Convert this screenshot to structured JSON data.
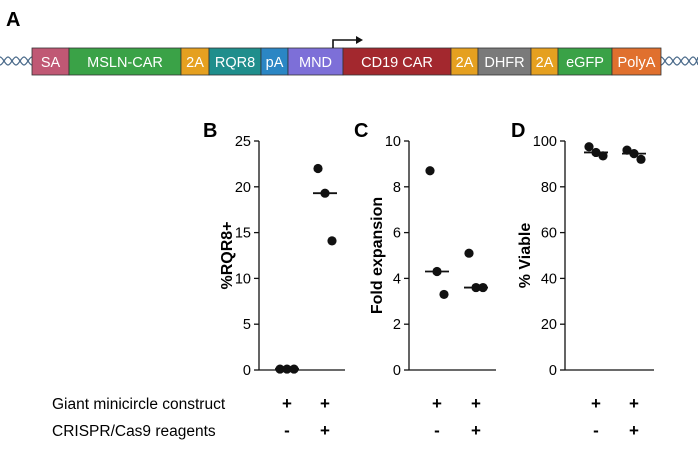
{
  "panel_a": {
    "label": "A",
    "segments": [
      {
        "text": "SA",
        "color": "#c05874"
      },
      {
        "text": "MSLN-CAR",
        "color": "#3aa247"
      },
      {
        "text": "2A",
        "color": "#e5a020"
      },
      {
        "text": "RQR8",
        "color": "#1f8e8c"
      },
      {
        "text": "pA",
        "color": "#2b86c4"
      },
      {
        "text": "MND",
        "color": "#7d6fd8"
      },
      {
        "text": "CD19 CAR",
        "color": "#a3282e"
      },
      {
        "text": "2A",
        "color": "#e5a020"
      },
      {
        "text": "DHFR",
        "color": "#7a7a7a"
      },
      {
        "text": "2A",
        "color": "#e5a020"
      },
      {
        "text": "eGFP",
        "color": "#3aa247"
      },
      {
        "text": "PolyA",
        "color": "#e0702e"
      }
    ]
  },
  "chart_data": [
    {
      "panel": "B",
      "type": "scatter",
      "ylabel": "%RQR8+",
      "ylim": [
        0,
        25
      ],
      "yticks": [
        "0",
        "5",
        "10",
        "15",
        "20",
        "25"
      ],
      "ytick_values": [
        0,
        5,
        10,
        15,
        20,
        25
      ],
      "groups": [
        {
          "name": "Giant minicircle only",
          "points": [
            0.1,
            0.1,
            0.1
          ],
          "median": 0.1
        },
        {
          "name": "Giant minicircle + CRISPR/Cas9",
          "points": [
            22,
            19.3,
            14.1
          ],
          "median": 19.3
        }
      ]
    },
    {
      "panel": "C",
      "type": "scatter",
      "ylabel": "Fold expansion",
      "ylim": [
        0,
        10
      ],
      "yticks": [
        "0",
        "2",
        "4",
        "6",
        "8",
        "10"
      ],
      "ytick_values": [
        0,
        2,
        4,
        6,
        8,
        10
      ],
      "groups": [
        {
          "name": "Giant minicircle only",
          "points": [
            8.7,
            4.3,
            3.3
          ],
          "median": 4.3
        },
        {
          "name": "Giant minicircle + CRISPR/Cas9",
          "points": [
            5.1,
            3.6,
            3.6
          ],
          "median": 3.6
        }
      ]
    },
    {
      "panel": "D",
      "type": "scatter",
      "ylabel": "% Viable",
      "ylim": [
        0,
        100
      ],
      "yticks": [
        "0",
        "20",
        "40",
        "60",
        "80",
        "100"
      ],
      "ytick_values": [
        0,
        20,
        40,
        60,
        80,
        100
      ],
      "groups": [
        {
          "name": "Giant minicircle only",
          "points": [
            97.5,
            95,
            93.5
          ],
          "median": 95
        },
        {
          "name": "Giant minicircle + CRISPR/Cas9",
          "points": [
            96,
            94.5,
            92
          ],
          "median": 94.5
        }
      ]
    }
  ],
  "conditions": {
    "row1_label": "Giant minicircle construct",
    "row2_label": "CRISPR/Cas9 reagents",
    "row1_marks": [
      "+",
      "+"
    ],
    "row2_marks": [
      "-",
      "+"
    ]
  }
}
